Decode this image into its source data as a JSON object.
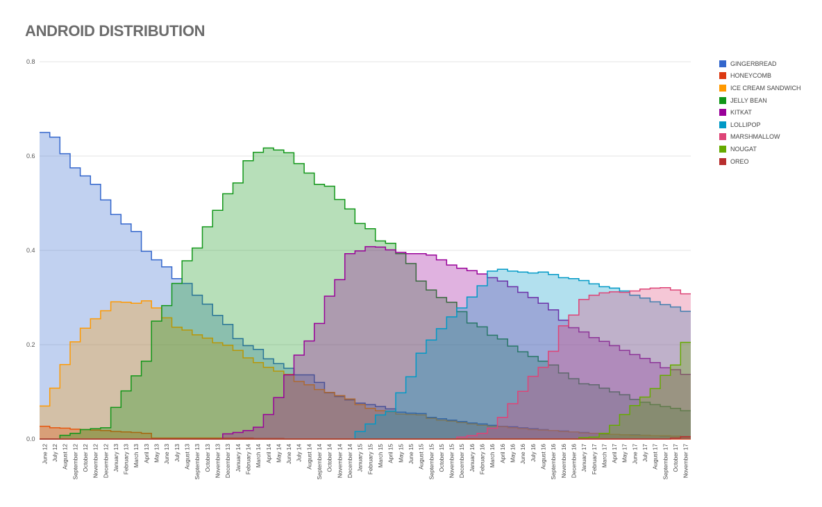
{
  "chart_data": {
    "type": "area",
    "step": true,
    "title": "ANDROID DISTRIBUTION",
    "xlabel": "",
    "ylabel": "",
    "ylim": [
      0,
      0.8
    ],
    "yticks": [
      "0.0",
      "0.2",
      "0.4",
      "0.6",
      "0.8"
    ],
    "grid": true,
    "legend_position": "right",
    "x": [
      "June 12",
      "July 12",
      "August 12",
      "September 12",
      "October 12",
      "November 12",
      "December 12",
      "January 13",
      "February 13",
      "March 13",
      "April 13",
      "May 13",
      "June 13",
      "July 13",
      "August 13",
      "September 13",
      "October 13",
      "November 13",
      "December 13",
      "January 14",
      "February 14",
      "March 14",
      "April 14",
      "May 14",
      "June 14",
      "July 14",
      "August 14",
      "September 14",
      "October 14",
      "November 14",
      "December 14",
      "January 15",
      "February 15",
      "March 15",
      "April 15",
      "May 15",
      "June 15",
      "August 15",
      "September 15",
      "October 15",
      "November 15",
      "December 15",
      "January 16",
      "February 16",
      "March 16",
      "April 16",
      "May 16",
      "June 16",
      "July 16",
      "August 16",
      "September 16",
      "November 16",
      "December 16",
      "January 17",
      "February 17",
      "March 17",
      "April 17",
      "May 17",
      "June 17",
      "July 17",
      "August 17",
      "September 17",
      "October 17",
      "November 17"
    ],
    "series": [
      {
        "name": "GINGERBREAD",
        "color": "#3366cc",
        "values": [
          0.65,
          0.64,
          0.605,
          0.575,
          0.558,
          0.54,
          0.507,
          0.476,
          0.456,
          0.44,
          0.398,
          0.38,
          0.365,
          0.34,
          0.33,
          0.305,
          0.286,
          0.262,
          0.243,
          0.213,
          0.198,
          0.19,
          0.17,
          0.16,
          0.15,
          0.136,
          0.136,
          0.12,
          0.098,
          0.09,
          0.083,
          0.076,
          0.073,
          0.069,
          0.064,
          0.057,
          0.055,
          0.054,
          0.046,
          0.043,
          0.04,
          0.037,
          0.034,
          0.032,
          0.029,
          0.027,
          0.026,
          0.024,
          0.022,
          0.02,
          0.018,
          0.017,
          0.015,
          0.014,
          0.012,
          0.01,
          0.01,
          0.009,
          0.009,
          0.008,
          0.007,
          0.006,
          0.006,
          0.005
        ]
      },
      {
        "name": "HONEYCOMB",
        "color": "#dc3912",
        "values": [
          0.027,
          0.024,
          0.023,
          0.021,
          0.02,
          0.019,
          0.018,
          0.016,
          0.015,
          0.014,
          0.012,
          0.002,
          0.002,
          0.002,
          0.002,
          0.002,
          0.002,
          0.002,
          0.002,
          0.002,
          0.002,
          0.001,
          0.001,
          0.001,
          0,
          0,
          0,
          0,
          0,
          0,
          0,
          0,
          0,
          0,
          0,
          0,
          0,
          0,
          0,
          0,
          0,
          0,
          0,
          0,
          0,
          0,
          0,
          0,
          0,
          0,
          0,
          0,
          0,
          0,
          0,
          0,
          0,
          0,
          0,
          0,
          0,
          0,
          0,
          0
        ]
      },
      {
        "name": "ICE CREAM SANDWICH",
        "color": "#ff9900",
        "values": [
          0.07,
          0.108,
          0.158,
          0.206,
          0.235,
          0.255,
          0.272,
          0.291,
          0.29,
          0.288,
          0.293,
          0.278,
          0.257,
          0.237,
          0.231,
          0.221,
          0.214,
          0.204,
          0.199,
          0.188,
          0.172,
          0.162,
          0.152,
          0.144,
          0.137,
          0.122,
          0.115,
          0.105,
          0.099,
          0.092,
          0.085,
          0.073,
          0.065,
          0.06,
          0.058,
          0.053,
          0.052,
          0.051,
          0.044,
          0.04,
          0.038,
          0.035,
          0.032,
          0.029,
          0.027,
          0.026,
          0.024,
          0.022,
          0.02,
          0.019,
          0.018,
          0.016,
          0.015,
          0.013,
          0.012,
          0.011,
          0.01,
          0.009,
          0.008,
          0.008,
          0.007,
          0.007,
          0.006,
          0.005
        ]
      },
      {
        "name": "JELLY BEAN",
        "color": "#109618",
        "values": [
          0,
          0,
          0.008,
          0.012,
          0.02,
          0.022,
          0.024,
          0.067,
          0.102,
          0.134,
          0.165,
          0.25,
          0.283,
          0.33,
          0.378,
          0.405,
          0.45,
          0.485,
          0.52,
          0.543,
          0.59,
          0.608,
          0.617,
          0.613,
          0.607,
          0.584,
          0.564,
          0.54,
          0.536,
          0.508,
          0.488,
          0.457,
          0.446,
          0.42,
          0.415,
          0.393,
          0.372,
          0.335,
          0.316,
          0.3,
          0.29,
          0.27,
          0.246,
          0.238,
          0.22,
          0.212,
          0.197,
          0.185,
          0.175,
          0.165,
          0.157,
          0.14,
          0.128,
          0.117,
          0.115,
          0.108,
          0.1,
          0.094,
          0.084,
          0.078,
          0.073,
          0.069,
          0.065,
          0.06
        ]
      },
      {
        "name": "KITKAT",
        "color": "#990099",
        "values": [
          0,
          0,
          0,
          0,
          0,
          0,
          0,
          0,
          0,
          0,
          0,
          0,
          0,
          0,
          0,
          0,
          0,
          0,
          0.011,
          0.014,
          0.018,
          0.025,
          0.052,
          0.088,
          0.136,
          0.178,
          0.208,
          0.245,
          0.303,
          0.338,
          0.393,
          0.399,
          0.408,
          0.407,
          0.401,
          0.396,
          0.393,
          0.393,
          0.39,
          0.38,
          0.369,
          0.362,
          0.357,
          0.35,
          0.342,
          0.335,
          0.323,
          0.311,
          0.3,
          0.288,
          0.274,
          0.252,
          0.236,
          0.227,
          0.215,
          0.207,
          0.198,
          0.188,
          0.179,
          0.171,
          0.162,
          0.151,
          0.147,
          0.137
        ]
      },
      {
        "name": "LOLLIPOP",
        "color": "#0099c6",
        "values": [
          0,
          0,
          0,
          0,
          0,
          0,
          0,
          0,
          0,
          0,
          0,
          0,
          0,
          0,
          0,
          0,
          0,
          0,
          0,
          0,
          0,
          0,
          0,
          0,
          0,
          0,
          0,
          0,
          0,
          0,
          0,
          0.016,
          0.032,
          0.051,
          0.059,
          0.098,
          0.132,
          0.182,
          0.21,
          0.234,
          0.259,
          0.278,
          0.301,
          0.325,
          0.356,
          0.36,
          0.356,
          0.354,
          0.352,
          0.354,
          0.349,
          0.342,
          0.34,
          0.336,
          0.329,
          0.323,
          0.32,
          0.314,
          0.305,
          0.299,
          0.291,
          0.285,
          0.28,
          0.271
        ]
      },
      {
        "name": "MARSHMALLOW",
        "color": "#dd4477",
        "values": [
          0,
          0,
          0,
          0,
          0,
          0,
          0,
          0,
          0,
          0,
          0,
          0,
          0,
          0,
          0,
          0,
          0,
          0,
          0,
          0,
          0,
          0,
          0,
          0,
          0,
          0,
          0,
          0,
          0,
          0,
          0,
          0,
          0,
          0,
          0,
          0,
          0,
          0,
          0,
          0,
          0,
          0.004,
          0.007,
          0.012,
          0.023,
          0.046,
          0.075,
          0.101,
          0.133,
          0.152,
          0.186,
          0.24,
          0.263,
          0.296,
          0.305,
          0.31,
          0.312,
          0.311,
          0.314,
          0.318,
          0.32,
          0.321,
          0.316,
          0.308
        ]
      },
      {
        "name": "NOUGAT",
        "color": "#66aa00",
        "values": [
          0,
          0,
          0,
          0,
          0,
          0,
          0,
          0,
          0,
          0,
          0,
          0,
          0,
          0,
          0,
          0,
          0,
          0,
          0,
          0,
          0,
          0,
          0,
          0,
          0,
          0,
          0,
          0,
          0,
          0,
          0,
          0,
          0,
          0,
          0,
          0,
          0,
          0,
          0,
          0,
          0,
          0,
          0,
          0,
          0,
          0,
          0,
          0,
          0,
          0,
          0,
          0,
          0,
          0.003,
          0.004,
          0.012,
          0.029,
          0.052,
          0.071,
          0.089,
          0.107,
          0.135,
          0.157,
          0.205
        ]
      },
      {
        "name": "OREO",
        "color": "#b82e2e",
        "values": [
          0,
          0,
          0,
          0,
          0,
          0,
          0,
          0,
          0,
          0,
          0,
          0,
          0,
          0,
          0,
          0,
          0,
          0,
          0,
          0,
          0,
          0,
          0,
          0,
          0,
          0,
          0,
          0,
          0,
          0,
          0,
          0,
          0,
          0,
          0,
          0,
          0,
          0,
          0,
          0,
          0,
          0,
          0,
          0,
          0,
          0,
          0,
          0,
          0,
          0,
          0,
          0,
          0,
          0,
          0,
          0,
          0,
          0,
          0,
          0,
          0,
          0,
          0.002,
          0.005
        ]
      }
    ]
  }
}
